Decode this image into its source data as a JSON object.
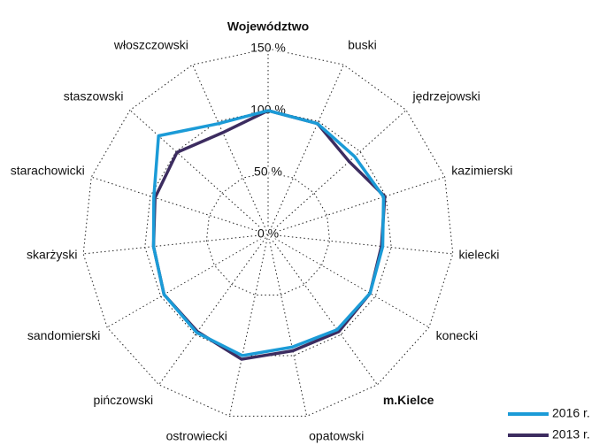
{
  "chart_data": {
    "type": "radar",
    "categories": [
      "Województwo",
      "buski",
      "jędrzejowski",
      "kazimierski",
      "kielecki",
      "konecki",
      "m.Kielce",
      "opatowski",
      "ostrowiecki",
      "pińczowski",
      "sandomierski",
      "skarżyski",
      "starachowicki",
      "staszowski",
      "włoszczowski"
    ],
    "series": [
      {
        "name": "2016 r.",
        "color": "#1b9bd7",
        "values": [
          100,
          98,
          94,
          98,
          93,
          95,
          95,
          93,
          100,
          98,
          97,
          93,
          97,
          119,
          98
        ]
      },
      {
        "name": "2013 r.",
        "color": "#3c2c60",
        "values": [
          100,
          98,
          88,
          99,
          92,
          95,
          97,
          96,
          103,
          97,
          97,
          93,
          96,
          99,
          90
        ]
      }
    ],
    "rlim": [
      0,
      150
    ],
    "rticks": [
      {
        "value": 0,
        "label": "0 %"
      },
      {
        "value": 50,
        "label": "50 %"
      },
      {
        "value": 100,
        "label": "100 %"
      },
      {
        "value": 150,
        "label": "150 %"
      }
    ],
    "grid": true,
    "legend": "lower right"
  }
}
